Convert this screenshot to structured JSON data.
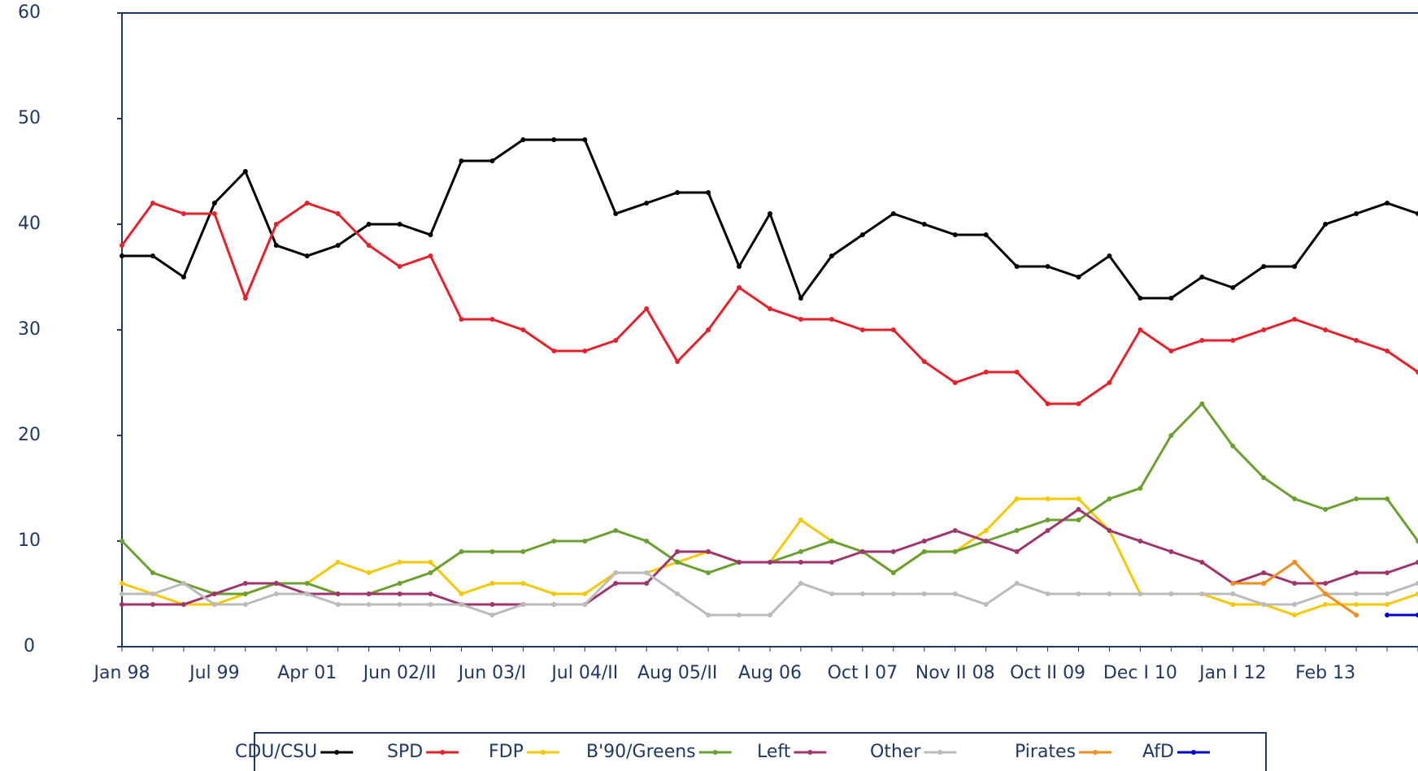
{
  "chart_data": {
    "type": "line",
    "categories": [
      "Jan 98",
      null,
      null,
      "Jul 99",
      null,
      null,
      "Apr 01",
      null,
      null,
      "Jun 02/II",
      null,
      null,
      "Jun 03/I",
      null,
      null,
      "Jul 04/II",
      null,
      null,
      "Aug 05/II",
      null,
      null,
      "Aug 06",
      null,
      null,
      "Oct I 07",
      null,
      null,
      "Nov II 08",
      null,
      null,
      "Oct II 09",
      null,
      null,
      "Dec I 10",
      null,
      null,
      "Jan I 12",
      null,
      null,
      "Feb 13",
      null,
      null,
      null
    ],
    "ylim": [
      0,
      60
    ],
    "yticks": [
      0,
      10,
      20,
      30,
      40,
      50,
      60
    ],
    "series": [
      {
        "name": "CDU/CSU",
        "color": "#000000",
        "values": [
          37,
          37,
          35,
          42,
          45,
          38,
          37,
          38,
          40,
          40,
          39,
          46,
          46,
          48,
          48,
          48,
          41,
          42,
          43,
          43,
          36,
          41,
          33,
          37,
          39,
          41,
          40,
          39,
          39,
          36,
          36,
          35,
          37,
          33,
          33,
          35,
          34,
          36,
          36,
          40,
          41,
          42,
          41
        ]
      },
      {
        "name": "SPD",
        "color": "#e8202a",
        "values": [
          38,
          42,
          41,
          41,
          33,
          40,
          42,
          41,
          38,
          36,
          37,
          31,
          31,
          30,
          28,
          28,
          29,
          32,
          27,
          30,
          34,
          32,
          31,
          31,
          30,
          30,
          27,
          25,
          26,
          26,
          23,
          23,
          25,
          30,
          28,
          29,
          29,
          30,
          31,
          30,
          29,
          28,
          26
        ]
      },
      {
        "name": "FDP",
        "color": "#f5c800",
        "values": [
          6,
          5,
          4,
          4,
          5,
          6,
          6,
          8,
          7,
          8,
          8,
          5,
          6,
          6,
          5,
          5,
          7,
          7,
          8,
          9,
          8,
          8,
          12,
          10,
          9,
          7,
          9,
          9,
          11,
          14,
          14,
          14,
          11,
          5,
          5,
          5,
          4,
          4,
          3,
          4,
          4,
          4,
          5
        ]
      },
      {
        "name": "B'90/Greens",
        "color": "#6aa12e",
        "values": [
          10,
          7,
          6,
          5,
          5,
          6,
          6,
          5,
          5,
          6,
          7,
          9,
          9,
          9,
          10,
          10,
          11,
          10,
          8,
          7,
          8,
          8,
          9,
          10,
          9,
          7,
          9,
          9,
          10,
          11,
          12,
          12,
          14,
          15,
          20,
          23,
          19,
          16,
          14,
          13,
          14,
          14,
          10
        ]
      },
      {
        "name": "Left",
        "color": "#a0356e",
        "values": [
          4,
          4,
          4,
          5,
          6,
          6,
          5,
          5,
          5,
          5,
          5,
          4,
          4,
          4,
          4,
          4,
          6,
          6,
          9,
          9,
          8,
          8,
          8,
          8,
          9,
          9,
          10,
          11,
          10,
          9,
          11,
          13,
          11,
          10,
          9,
          8,
          6,
          7,
          6,
          6,
          7,
          7,
          8
        ]
      },
      {
        "name": "Other",
        "color": "#bbbbbb",
        "values": [
          5,
          5,
          6,
          4,
          4,
          5,
          5,
          4,
          4,
          4,
          4,
          4,
          3,
          4,
          4,
          4,
          7,
          7,
          5,
          3,
          3,
          3,
          6,
          5,
          5,
          5,
          5,
          5,
          4,
          6,
          5,
          5,
          5,
          5,
          5,
          5,
          5,
          4,
          4,
          5,
          5,
          5,
          6
        ]
      },
      {
        "name": "Pirates",
        "color": "#f28c1a",
        "values": [
          null,
          null,
          null,
          null,
          null,
          null,
          null,
          null,
          null,
          null,
          null,
          null,
          null,
          null,
          null,
          null,
          null,
          null,
          null,
          null,
          null,
          null,
          null,
          null,
          null,
          null,
          null,
          null,
          null,
          null,
          null,
          null,
          null,
          null,
          null,
          null,
          6,
          6,
          8,
          5,
          3,
          null,
          null
        ]
      },
      {
        "name": "AfD",
        "color": "#0000cc",
        "values": [
          null,
          null,
          null,
          null,
          null,
          null,
          null,
          null,
          null,
          null,
          null,
          null,
          null,
          null,
          null,
          null,
          null,
          null,
          null,
          null,
          null,
          null,
          null,
          null,
          null,
          null,
          null,
          null,
          null,
          null,
          null,
          null,
          null,
          null,
          null,
          null,
          null,
          null,
          null,
          null,
          null,
          3,
          3
        ]
      }
    ]
  }
}
